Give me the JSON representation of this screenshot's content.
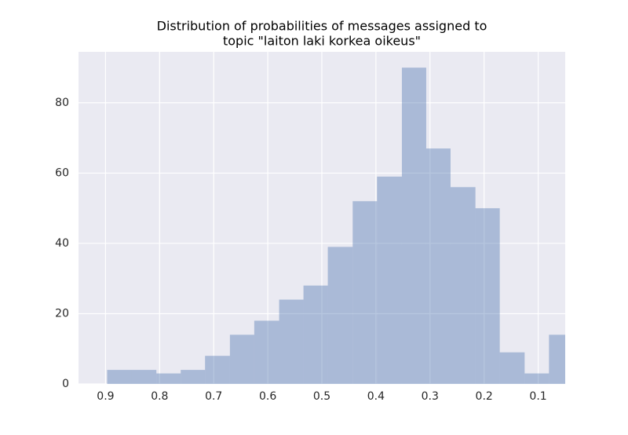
{
  "chart_data": {
    "type": "histogram",
    "title": [
      "Distribution of probabilities of messages assigned to",
      "topic \"laiton laki korkea oikeus\""
    ],
    "bins": [
      0.034,
      0.08,
      0.125,
      0.171,
      0.216,
      0.262,
      0.307,
      0.352,
      0.398,
      0.443,
      0.489,
      0.534,
      0.579,
      0.625,
      0.67,
      0.716,
      0.761,
      0.806,
      0.852,
      0.897
    ],
    "values": [
      14,
      3,
      9,
      50,
      56,
      67,
      90,
      59,
      52,
      39,
      28,
      24,
      18,
      14,
      8,
      4,
      3,
      4,
      4
    ],
    "color": "#4c72b0",
    "xlim": [
      0.95,
      0.05
    ],
    "xticks": [
      0.9,
      0.8,
      0.7,
      0.6,
      0.5,
      0.4,
      0.3,
      0.2,
      0.1
    ],
    "ylim": [
      0,
      94.5
    ],
    "yticks": [
      0,
      20,
      40,
      60,
      80
    ],
    "grid": true
  }
}
